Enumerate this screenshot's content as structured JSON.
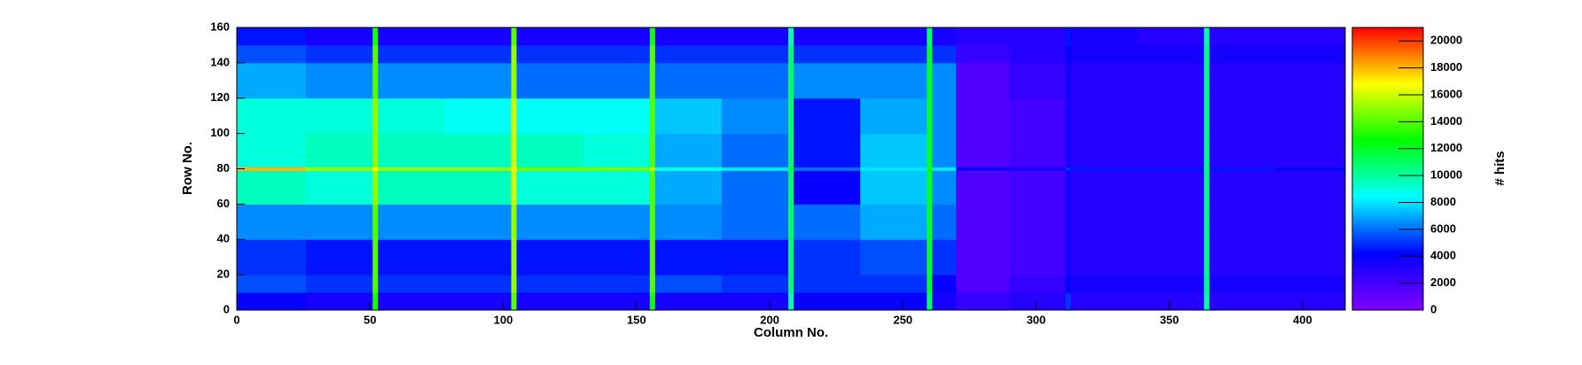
{
  "chart_data": {
    "type": "heatmap",
    "x_label": "Column No.",
    "y_label": "Row No.",
    "z_label": "# hits",
    "xbins": [
      0,
      26,
      51,
      53,
      78,
      103,
      105,
      130,
      155,
      157,
      182,
      207,
      209,
      234,
      259,
      261,
      270,
      290,
      311,
      313,
      338,
      363,
      365,
      390,
      416
    ],
    "ybins": [
      0,
      10,
      20,
      40,
      60,
      79,
      81,
      100,
      120,
      140,
      150,
      160
    ],
    "z": [
      [
        4000,
        3500,
        13000,
        3500,
        3500,
        14000,
        3500,
        3500,
        13000,
        3500,
        3500,
        10000,
        4000,
        4000,
        11000,
        3500,
        2500,
        3000,
        5000,
        3000,
        3000,
        10000,
        3000,
        3000
      ],
      [
        5500,
        5000,
        14000,
        5000,
        5000,
        15000,
        5000,
        5000,
        14000,
        5500,
        5000,
        11000,
        5000,
        5000,
        12000,
        4000,
        1500,
        2500,
        4000,
        3500,
        3500,
        10500,
        3500,
        3500
      ],
      [
        5000,
        4500,
        14000,
        4500,
        4500,
        15000,
        4500,
        4500,
        14000,
        4500,
        4500,
        11000,
        5000,
        5500,
        12000,
        5000,
        1500,
        2000,
        3500,
        3000,
        3000,
        10500,
        3000,
        3000
      ],
      [
        6500,
        6500,
        14000,
        6500,
        6500,
        15000,
        6500,
        6500,
        14000,
        6500,
        6000,
        11000,
        6000,
        7000,
        12000,
        6000,
        1500,
        2000,
        3500,
        3000,
        3000,
        10500,
        3000,
        3000
      ],
      [
        9500,
        9000,
        15000,
        9500,
        9500,
        16000,
        9000,
        9000,
        14000,
        7000,
        6000,
        11000,
        4000,
        7500,
        12000,
        6500,
        1500,
        2000,
        3500,
        3000,
        3000,
        10500,
        3000,
        3000
      ],
      [
        18000,
        15000,
        17000,
        15000,
        15000,
        17000,
        14500,
        14500,
        16000,
        9000,
        8000,
        12000,
        6000,
        8000,
        13000,
        8000,
        4000,
        3500,
        5000,
        4500,
        4500,
        11000,
        4500,
        4000
      ],
      [
        9000,
        9500,
        15000,
        9500,
        9500,
        16000,
        9500,
        9000,
        14000,
        7000,
        6000,
        11000,
        4500,
        7500,
        12000,
        6500,
        1500,
        2000,
        3500,
        3000,
        3000,
        10500,
        3000,
        3000
      ],
      [
        9000,
        9000,
        15000,
        9000,
        8500,
        16000,
        8500,
        8500,
        14000,
        7500,
        6500,
        11000,
        4500,
        7000,
        12000,
        6500,
        1500,
        2000,
        3500,
        3000,
        3000,
        10500,
        3000,
        3000
      ],
      [
        7000,
        6500,
        14000,
        6500,
        6500,
        15000,
        6000,
        6000,
        14000,
        6000,
        6000,
        11000,
        6500,
        6500,
        12000,
        6500,
        1500,
        2500,
        3500,
        3000,
        3000,
        10500,
        3000,
        3000
      ],
      [
        5500,
        5000,
        14000,
        5000,
        5000,
        15000,
        5000,
        5000,
        14000,
        5000,
        5000,
        11000,
        5000,
        5000,
        12000,
        5000,
        2500,
        3000,
        4000,
        3500,
        3500,
        10500,
        3500,
        3500
      ],
      [
        4500,
        3500,
        13000,
        3500,
        3500,
        14000,
        3500,
        3500,
        13000,
        3500,
        3500,
        10000,
        3500,
        3500,
        11000,
        3500,
        3000,
        3000,
        4500,
        3500,
        3000,
        10000,
        3000,
        3000
      ]
    ],
    "xlim": [
      0,
      416
    ],
    "xticks": [
      0,
      50,
      100,
      150,
      200,
      250,
      300,
      350,
      400
    ],
    "ylim": [
      0,
      160
    ],
    "yticks": [
      0,
      20,
      40,
      60,
      80,
      100,
      120,
      140,
      160
    ],
    "zlim": [
      0,
      21000
    ],
    "zticks": [
      0,
      2000,
      4000,
      6000,
      8000,
      10000,
      12000,
      14000,
      16000,
      18000,
      20000
    ],
    "colorscale": [
      "#8000ff",
      "#0000ff",
      "#00ffff",
      "#00ff00",
      "#ffff00",
      "#ff0000"
    ]
  }
}
